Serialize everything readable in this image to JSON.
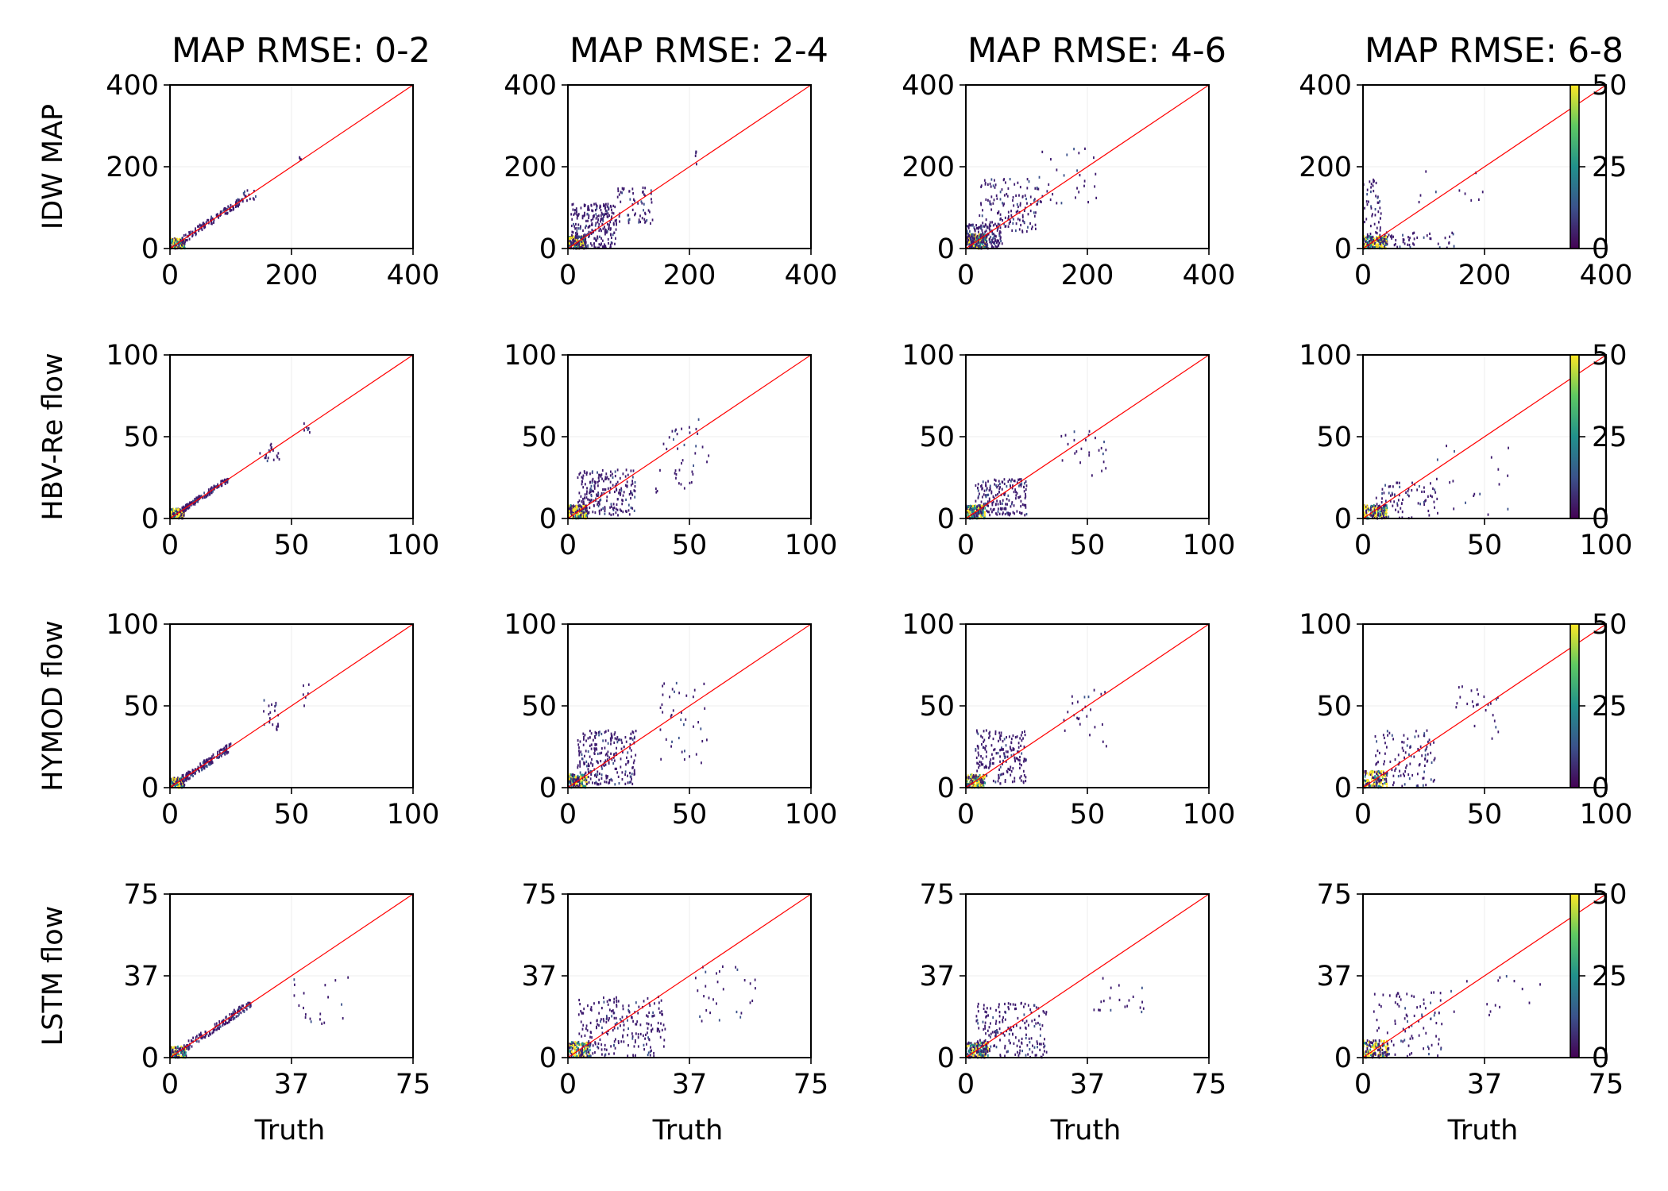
{
  "figure": {
    "column_titles": [
      "MAP RMSE: 0-2",
      "MAP RMSE: 2-4",
      "MAP RMSE: 4-6",
      "MAP RMSE: 6-8"
    ],
    "row_labels": [
      "IDW MAP",
      "HBV-Re flow",
      "HYMOD flow",
      "LSTM flow"
    ],
    "xlabel": "Truth"
  },
  "colors": {
    "identity_line": "#ff0000",
    "colormap": [
      "#440154",
      "#3b528b",
      "#21918c",
      "#5ec962",
      "#fde725"
    ],
    "point_low": "#3d1a6e",
    "point_high": "#fde725"
  },
  "chart_data": [
    {
      "type": "heatmap",
      "row": "IDW MAP",
      "axis_limits": [
        0,
        400
      ],
      "ticks": [
        "0",
        "200",
        "400"
      ],
      "colorbar": {
        "range": [
          0,
          50
        ],
        "ticks": [
          "0",
          "25",
          "50"
        ]
      },
      "panels": [
        {
          "title": "MAP RMSE: 0-2",
          "xlabel": "",
          "clusters": [
            {
              "x_range": [
                0,
                25
              ],
              "y_range": [
                0,
                25
              ],
              "n": 140,
              "density": "high"
            },
            {
              "x_range": [
                20,
                120
              ],
              "y_range": [
                15,
                120
              ],
              "n": 120,
              "density": "low",
              "along_identity": true
            },
            {
              "x_range": [
                120,
                145
              ],
              "y_range": [
                115,
                145
              ],
              "n": 14,
              "density": "low"
            },
            {
              "x_range": [
                212,
                218
              ],
              "y_range": [
                215,
                228
              ],
              "n": 4,
              "density": "low"
            }
          ]
        },
        {
          "title": "MAP RMSE: 2-4",
          "xlabel": "",
          "clusters": [
            {
              "x_range": [
                0,
                30
              ],
              "y_range": [
                0,
                30
              ],
              "n": 180,
              "density": "high"
            },
            {
              "x_range": [
                5,
                80
              ],
              "y_range": [
                0,
                110
              ],
              "n": 260,
              "density": "low"
            },
            {
              "x_range": [
                80,
                140
              ],
              "y_range": [
                60,
                150
              ],
              "n": 60,
              "density": "low"
            },
            {
              "x_range": [
                210,
                215
              ],
              "y_range": [
                195,
                238
              ],
              "n": 5,
              "density": "low"
            }
          ]
        },
        {
          "title": "MAP RMSE: 4-6",
          "xlabel": "",
          "clusters": [
            {
              "x_range": [
                0,
                35
              ],
              "y_range": [
                0,
                35
              ],
              "n": 200,
              "density": "high"
            },
            {
              "x_range": [
                0,
                60
              ],
              "y_range": [
                0,
                60
              ],
              "n": 160,
              "density": "low"
            },
            {
              "x_range": [
                20,
                120
              ],
              "y_range": [
                40,
                170
              ],
              "n": 140,
              "density": "low"
            },
            {
              "x_range": [
                120,
                215
              ],
              "y_range": [
                110,
                245
              ],
              "n": 30,
              "density": "low"
            }
          ]
        },
        {
          "title": "MAP RMSE: 6-8",
          "xlabel": "",
          "clusters": [
            {
              "x_range": [
                0,
                40
              ],
              "y_range": [
                0,
                30
              ],
              "n": 180,
              "density": "high"
            },
            {
              "x_range": [
                0,
                30
              ],
              "y_range": [
                10,
                180
              ],
              "n": 60,
              "density": "low"
            },
            {
              "x_range": [
                30,
                150
              ],
              "y_range": [
                0,
                40
              ],
              "n": 50,
              "density": "low"
            },
            {
              "x_range": [
                90,
                210
              ],
              "y_range": [
                110,
                190
              ],
              "n": 10,
              "density": "low"
            }
          ]
        }
      ]
    },
    {
      "type": "heatmap",
      "row": "HBV-Re flow",
      "axis_limits": [
        0,
        100
      ],
      "ticks": [
        "0",
        "50",
        "100"
      ],
      "colorbar": {
        "range": [
          0,
          50
        ],
        "ticks": [
          "0",
          "25",
          "50"
        ]
      },
      "panels": [
        {
          "title": "",
          "xlabel": "",
          "clusters": [
            {
              "x_range": [
                0,
                6
              ],
              "y_range": [
                0,
                6
              ],
              "n": 120,
              "density": "high"
            },
            {
              "x_range": [
                5,
                24
              ],
              "y_range": [
                4,
                24
              ],
              "n": 140,
              "density": "low",
              "along_identity": true
            },
            {
              "x_range": [
                37,
                45
              ],
              "y_range": [
                35,
                46
              ],
              "n": 20,
              "density": "low"
            },
            {
              "x_range": [
                55,
                58
              ],
              "y_range": [
                52,
                62
              ],
              "n": 6,
              "density": "low"
            }
          ]
        },
        {
          "title": "",
          "xlabel": "",
          "clusters": [
            {
              "x_range": [
                0,
                8
              ],
              "y_range": [
                0,
                8
              ],
              "n": 160,
              "density": "high"
            },
            {
              "x_range": [
                4,
                28
              ],
              "y_range": [
                2,
                30
              ],
              "n": 220,
              "density": "low"
            },
            {
              "x_range": [
                36,
                58
              ],
              "y_range": [
                15,
                62
              ],
              "n": 40,
              "density": "low"
            }
          ]
        },
        {
          "title": "",
          "xlabel": "",
          "clusters": [
            {
              "x_range": [
                0,
                8
              ],
              "y_range": [
                0,
                8
              ],
              "n": 160,
              "density": "high"
            },
            {
              "x_range": [
                4,
                25
              ],
              "y_range": [
                2,
                24
              ],
              "n": 180,
              "density": "low"
            },
            {
              "x_range": [
                38,
                58
              ],
              "y_range": [
                25,
                55
              ],
              "n": 25,
              "density": "low"
            }
          ]
        },
        {
          "title": "",
          "xlabel": "",
          "clusters": [
            {
              "x_range": [
                0,
                10
              ],
              "y_range": [
                0,
                8
              ],
              "n": 150,
              "density": "high"
            },
            {
              "x_range": [
                5,
                30
              ],
              "y_range": [
                0,
                22
              ],
              "n": 80,
              "density": "low"
            },
            {
              "x_range": [
                30,
                60
              ],
              "y_range": [
                0,
                48
              ],
              "n": 20,
              "density": "low"
            }
          ]
        }
      ]
    },
    {
      "type": "heatmap",
      "row": "HYMOD flow",
      "axis_limits": [
        0,
        100
      ],
      "ticks": [
        "0",
        "50",
        "100"
      ],
      "colorbar": {
        "range": [
          0,
          50
        ],
        "ticks": [
          "0",
          "25",
          "50"
        ]
      },
      "panels": [
        {
          "title": "",
          "xlabel": "",
          "clusters": [
            {
              "x_range": [
                0,
                6
              ],
              "y_range": [
                0,
                6
              ],
              "n": 120,
              "density": "high"
            },
            {
              "x_range": [
                5,
                25
              ],
              "y_range": [
                4,
                32
              ],
              "n": 150,
              "density": "low",
              "along_identity": true
            },
            {
              "x_range": [
                38,
                45
              ],
              "y_range": [
                35,
                55
              ],
              "n": 20,
              "density": "low"
            },
            {
              "x_range": [
                54,
                58
              ],
              "y_range": [
                50,
                65
              ],
              "n": 6,
              "density": "low"
            }
          ]
        },
        {
          "title": "",
          "xlabel": "",
          "clusters": [
            {
              "x_range": [
                0,
                8
              ],
              "y_range": [
                0,
                8
              ],
              "n": 160,
              "density": "high"
            },
            {
              "x_range": [
                4,
                28
              ],
              "y_range": [
                2,
                35
              ],
              "n": 230,
              "density": "low"
            },
            {
              "x_range": [
                38,
                58
              ],
              "y_range": [
                15,
                65
              ],
              "n": 40,
              "density": "low"
            }
          ]
        },
        {
          "title": "",
          "xlabel": "",
          "clusters": [
            {
              "x_range": [
                0,
                8
              ],
              "y_range": [
                0,
                8
              ],
              "n": 160,
              "density": "high"
            },
            {
              "x_range": [
                4,
                25
              ],
              "y_range": [
                2,
                35
              ],
              "n": 180,
              "density": "low"
            },
            {
              "x_range": [
                38,
                58
              ],
              "y_range": [
                25,
                60
              ],
              "n": 25,
              "density": "low"
            }
          ]
        },
        {
          "title": "",
          "xlabel": "",
          "clusters": [
            {
              "x_range": [
                0,
                10
              ],
              "y_range": [
                0,
                10
              ],
              "n": 150,
              "density": "high"
            },
            {
              "x_range": [
                5,
                30
              ],
              "y_range": [
                0,
                35
              ],
              "n": 110,
              "density": "low"
            },
            {
              "x_range": [
                38,
                58
              ],
              "y_range": [
                30,
                62
              ],
              "n": 25,
              "density": "low"
            }
          ]
        }
      ]
    },
    {
      "type": "heatmap",
      "row": "LSTM flow",
      "axis_limits": [
        0,
        75
      ],
      "ticks": [
        "0",
        "37",
        "75"
      ],
      "colorbar": {
        "range": [
          0,
          50
        ],
        "ticks": [
          "0",
          "25",
          "50"
        ]
      },
      "panels": [
        {
          "title": "",
          "xlabel": "Truth",
          "clusters": [
            {
              "x_range": [
                0,
                5
              ],
              "y_range": [
                0,
                5
              ],
              "n": 120,
              "density": "high"
            },
            {
              "x_range": [
                4,
                25
              ],
              "y_range": [
                3,
                25
              ],
              "n": 140,
              "density": "low",
              "along_identity": true
            },
            {
              "x_range": [
                38,
                55
              ],
              "y_range": [
                15,
                38
              ],
              "n": 20,
              "density": "low"
            }
          ]
        },
        {
          "title": "",
          "xlabel": "Truth",
          "clusters": [
            {
              "x_range": [
                0,
                7
              ],
              "y_range": [
                0,
                7
              ],
              "n": 160,
              "density": "high"
            },
            {
              "x_range": [
                3,
                30
              ],
              "y_range": [
                0,
                28
              ],
              "n": 230,
              "density": "low"
            },
            {
              "x_range": [
                38,
                58
              ],
              "y_range": [
                15,
                45
              ],
              "n": 30,
              "density": "low"
            }
          ]
        },
        {
          "title": "",
          "xlabel": "Truth",
          "clusters": [
            {
              "x_range": [
                0,
                7
              ],
              "y_range": [
                0,
                7
              ],
              "n": 160,
              "density": "high"
            },
            {
              "x_range": [
                3,
                25
              ],
              "y_range": [
                0,
                25
              ],
              "n": 190,
              "density": "low"
            },
            {
              "x_range": [
                38,
                55
              ],
              "y_range": [
                20,
                38
              ],
              "n": 20,
              "density": "low"
            }
          ]
        },
        {
          "title": "",
          "xlabel": "Truth",
          "clusters": [
            {
              "x_range": [
                0,
                8
              ],
              "y_range": [
                0,
                8
              ],
              "n": 150,
              "density": "high"
            },
            {
              "x_range": [
                3,
                25
              ],
              "y_range": [
                0,
                30
              ],
              "n": 90,
              "density": "low"
            },
            {
              "x_range": [
                25,
                55
              ],
              "y_range": [
                15,
                40
              ],
              "n": 15,
              "density": "low"
            }
          ]
        }
      ]
    }
  ]
}
